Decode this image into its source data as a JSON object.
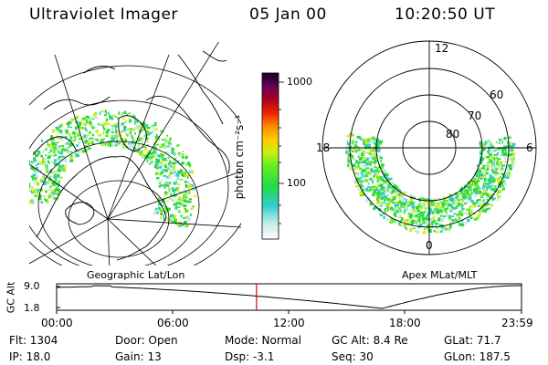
{
  "header": {
    "title": "Ultraviolet Imager",
    "date": "05 Jan 00",
    "time": "10:20:50 UT"
  },
  "colorbar": {
    "unit_label": "photon cm⁻²s⁻¹",
    "tick_high": "1000",
    "tick_mid": "100"
  },
  "panels": {
    "left_caption": "Geographic Lat/Lon",
    "right_caption": "Apex  MLat/MLT"
  },
  "polar_plot": {
    "mlt_top": "12",
    "mlt_left": "18",
    "mlt_right": "6",
    "mlt_bottom": "0",
    "lat_60": "60",
    "lat_70": "70",
    "lat_80": "80"
  },
  "timeline": {
    "axis_label": "GC Alt",
    "y_high": "9.0",
    "y_low": "1.8",
    "ticks": [
      "00:00",
      "06:00",
      "12:00",
      "18:00",
      "23:59"
    ],
    "current_fraction": 0.43
  },
  "status": {
    "flt": "Flt: 1304",
    "ip": "IP: 18.0",
    "door": "Door: Open",
    "gain": "Gain: 13",
    "mode": "Mode: Normal",
    "dsp": "Dsp:    -3.1",
    "gc_alt": "GC Alt: 8.4 Re",
    "seq": "Seq: 30",
    "glat": "GLat:  71.7",
    "glon": "GLon: 187.5"
  },
  "colors": {
    "marker": "#e00000",
    "aurora_green": "#33cc33",
    "aurora_cyan": "#33cccc"
  }
}
